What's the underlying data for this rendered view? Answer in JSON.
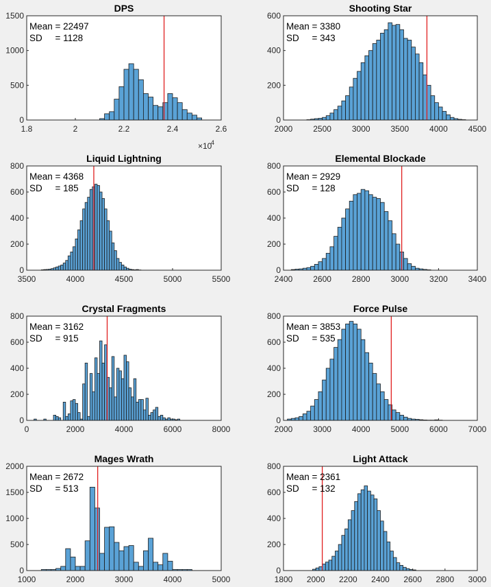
{
  "figure": {
    "background": "#f0f0f0",
    "bar_color": "#5aa2d6",
    "bar_edge": "#1a1a1a",
    "marker_color": "#e01e1e"
  },
  "chart_data": [
    {
      "type": "bar",
      "title": "DPS",
      "stat_mean": "Mean = 22497",
      "stat_sd": "SD     = 1128",
      "xlim": [
        18000,
        26000
      ],
      "ylim": [
        0,
        1500
      ],
      "xticks": [
        18000,
        20000,
        22000,
        24000,
        26000
      ],
      "xtick_labels": [
        "1.8",
        "2",
        "2.2",
        "2.4",
        "2.6"
      ],
      "yticks": [
        0,
        500,
        1000,
        1500
      ],
      "ytick_labels": [
        "0",
        "500",
        "1000",
        "1500"
      ],
      "exponent_label": "×10",
      "exponent_power": "4",
      "bin_start": 21000,
      "bin_width": 200,
      "values": [
        20,
        90,
        120,
        300,
        480,
        730,
        810,
        730,
        580,
        380,
        330,
        210,
        190,
        250,
        380,
        320,
        250,
        150,
        100,
        70,
        30
      ],
      "marker": 23650
    },
    {
      "type": "bar",
      "title": "Shooting Star",
      "stat_mean": "Mean = 3380",
      "stat_sd": "SD     = 343",
      "xlim": [
        2000,
        4500
      ],
      "ylim": [
        0,
        600
      ],
      "xticks": [
        2000,
        2500,
        3000,
        3500,
        4000,
        4500
      ],
      "xtick_labels": [
        "2000",
        "2500",
        "3000",
        "3500",
        "4000",
        "4500"
      ],
      "yticks": [
        0,
        200,
        400,
        600
      ],
      "ytick_labels": [
        "0",
        "200",
        "400",
        "600"
      ],
      "bin_start": 2300,
      "bin_width": 50,
      "values": [
        2,
        5,
        8,
        10,
        15,
        25,
        40,
        60,
        80,
        110,
        140,
        190,
        240,
        280,
        330,
        370,
        400,
        440,
        460,
        500,
        520,
        560,
        545,
        550,
        520,
        470,
        460,
        420,
        380,
        330,
        260,
        200,
        140,
        100,
        75,
        50,
        30,
        15,
        8,
        4,
        2
      ],
      "marker": 3850
    },
    {
      "type": "bar",
      "title": "Liquid Lightning",
      "stat_mean": "Mean = 4368",
      "stat_sd": "SD     = 185",
      "xlim": [
        3500,
        5500
      ],
      "ylim": [
        0,
        800
      ],
      "xticks": [
        3500,
        4000,
        4500,
        5000,
        5500
      ],
      "xtick_labels": [
        "3500",
        "4000",
        "4500",
        "5000",
        "5500"
      ],
      "yticks": [
        0,
        200,
        400,
        600,
        800
      ],
      "ytick_labels": [
        "0",
        "200",
        "400",
        "600",
        "800"
      ],
      "bin_start": 3650,
      "bin_width": 25,
      "values": [
        3,
        5,
        6,
        8,
        12,
        18,
        25,
        32,
        40,
        55,
        75,
        110,
        140,
        180,
        240,
        310,
        380,
        470,
        520,
        560,
        620,
        640,
        660,
        650,
        600,
        550,
        470,
        380,
        300,
        210,
        150,
        90,
        60,
        40,
        25,
        15,
        8,
        5,
        3,
        5,
        2
      ],
      "marker": 4190
    },
    {
      "type": "bar",
      "title": "Elemental Blockade",
      "stat_mean": "Mean = 2929",
      "stat_sd": "SD     = 128",
      "xlim": [
        2400,
        3400
      ],
      "ylim": [
        0,
        800
      ],
      "xticks": [
        2400,
        2600,
        2800,
        3000,
        3200,
        3400
      ],
      "xtick_labels": [
        "2400",
        "2600",
        "2800",
        "3000",
        "3200",
        "3400"
      ],
      "yticks": [
        0,
        200,
        400,
        600,
        800
      ],
      "ytick_labels": [
        "0",
        "200",
        "400",
        "600",
        "800"
      ],
      "bin_start": 2440,
      "bin_width": 20,
      "values": [
        5,
        8,
        10,
        15,
        20,
        30,
        45,
        65,
        90,
        130,
        180,
        260,
        330,
        400,
        470,
        530,
        580,
        590,
        620,
        610,
        580,
        560,
        550,
        520,
        450,
        380,
        280,
        200,
        140,
        90,
        50,
        30,
        15,
        10,
        6,
        3
      ],
      "marker": 3010
    },
    {
      "type": "bar",
      "title": "Crystal Fragments",
      "stat_mean": "Mean = 3162",
      "stat_sd": "SD     = 915",
      "xlim": [
        0,
        8000
      ],
      "ylim": [
        0,
        800
      ],
      "xticks": [
        0,
        2000,
        4000,
        6000,
        8000
      ],
      "xtick_labels": [
        "0",
        "2000",
        "4000",
        "6000",
        "8000"
      ],
      "yticks": [
        0,
        200,
        400,
        600,
        800
      ],
      "ytick_labels": [
        "0",
        "200",
        "400",
        "600",
        "800"
      ],
      "bin_start": 300,
      "bin_width": 100,
      "values": [
        10,
        0,
        0,
        0,
        10,
        0,
        0,
        0,
        40,
        30,
        20,
        0,
        140,
        30,
        50,
        150,
        160,
        130,
        60,
        10,
        280,
        440,
        30,
        360,
        220,
        480,
        360,
        610,
        440,
        580,
        330,
        250,
        490,
        180,
        400,
        380,
        320,
        500,
        450,
        250,
        180,
        320,
        140,
        160,
        160,
        80,
        170,
        40,
        60,
        80,
        100,
        30,
        40,
        20,
        10,
        20,
        10,
        10,
        5,
        10
      ],
      "marker": 3310
    },
    {
      "type": "bar",
      "title": "Force Pulse",
      "stat_mean": "Mean = 3853",
      "stat_sd": "SD     = 535",
      "xlim": [
        2000,
        7000
      ],
      "ylim": [
        0,
        800
      ],
      "xticks": [
        2000,
        3000,
        4000,
        5000,
        6000,
        7000
      ],
      "xtick_labels": [
        "2000",
        "3000",
        "4000",
        "5000",
        "6000",
        "7000"
      ],
      "yticks": [
        0,
        200,
        400,
        600,
        800
      ],
      "ytick_labels": [
        "0",
        "200",
        "400",
        "600",
        "800"
      ],
      "bin_start": 2100,
      "bin_width": 100,
      "values": [
        10,
        15,
        20,
        30,
        50,
        70,
        110,
        160,
        220,
        310,
        400,
        470,
        560,
        620,
        700,
        740,
        760,
        740,
        700,
        620,
        520,
        440,
        360,
        280,
        220,
        160,
        120,
        80,
        60,
        40,
        25,
        15,
        10,
        8,
        5,
        3,
        2,
        2,
        4,
        2
      ],
      "marker": 4780
    },
    {
      "type": "bar",
      "title": "Mages Wrath",
      "stat_mean": "Mean = 2672",
      "stat_sd": "SD     = 513",
      "xlim": [
        1000,
        5000
      ],
      "ylim": [
        0,
        2000
      ],
      "xticks": [
        1000,
        2000,
        3000,
        4000,
        5000
      ],
      "xtick_labels": [
        "1000",
        "2000",
        "3000",
        "4000",
        "5000"
      ],
      "yticks": [
        0,
        500,
        1000,
        1500,
        2000
      ],
      "ytick_labels": [
        "0",
        "500",
        "1000",
        "1500",
        "2000"
      ],
      "bin_start": 1300,
      "bin_width": 100,
      "values": [
        20,
        20,
        20,
        40,
        80,
        420,
        260,
        80,
        80,
        570,
        1600,
        1200,
        330,
        830,
        840,
        540,
        380,
        460,
        480,
        160,
        80,
        380,
        620,
        160,
        110,
        330,
        180,
        20,
        20,
        20,
        20
      ],
      "marker": 2460
    },
    {
      "type": "bar",
      "title": "Light Attack",
      "stat_mean": "Mean = 2361",
      "stat_sd": "SD     = 132",
      "xlim": [
        1800,
        3000
      ],
      "ylim": [
        0,
        800
      ],
      "xticks": [
        1800,
        2000,
        2200,
        2400,
        2600,
        2800,
        3000
      ],
      "xtick_labels": [
        "1800",
        "2000",
        "2200",
        "2400",
        "2600",
        "2800",
        "3000"
      ],
      "yticks": [
        0,
        200,
        400,
        600,
        800
      ],
      "ytick_labels": [
        "0",
        "200",
        "400",
        "600",
        "800"
      ],
      "bin_start": 1980,
      "bin_width": 20,
      "values": [
        10,
        20,
        30,
        50,
        65,
        80,
        110,
        150,
        200,
        270,
        320,
        390,
        460,
        530,
        590,
        620,
        650,
        610,
        580,
        550,
        460,
        380,
        300,
        220,
        150,
        100,
        60,
        40,
        25,
        15,
        8,
        5
      ],
      "marker": 2040
    }
  ]
}
